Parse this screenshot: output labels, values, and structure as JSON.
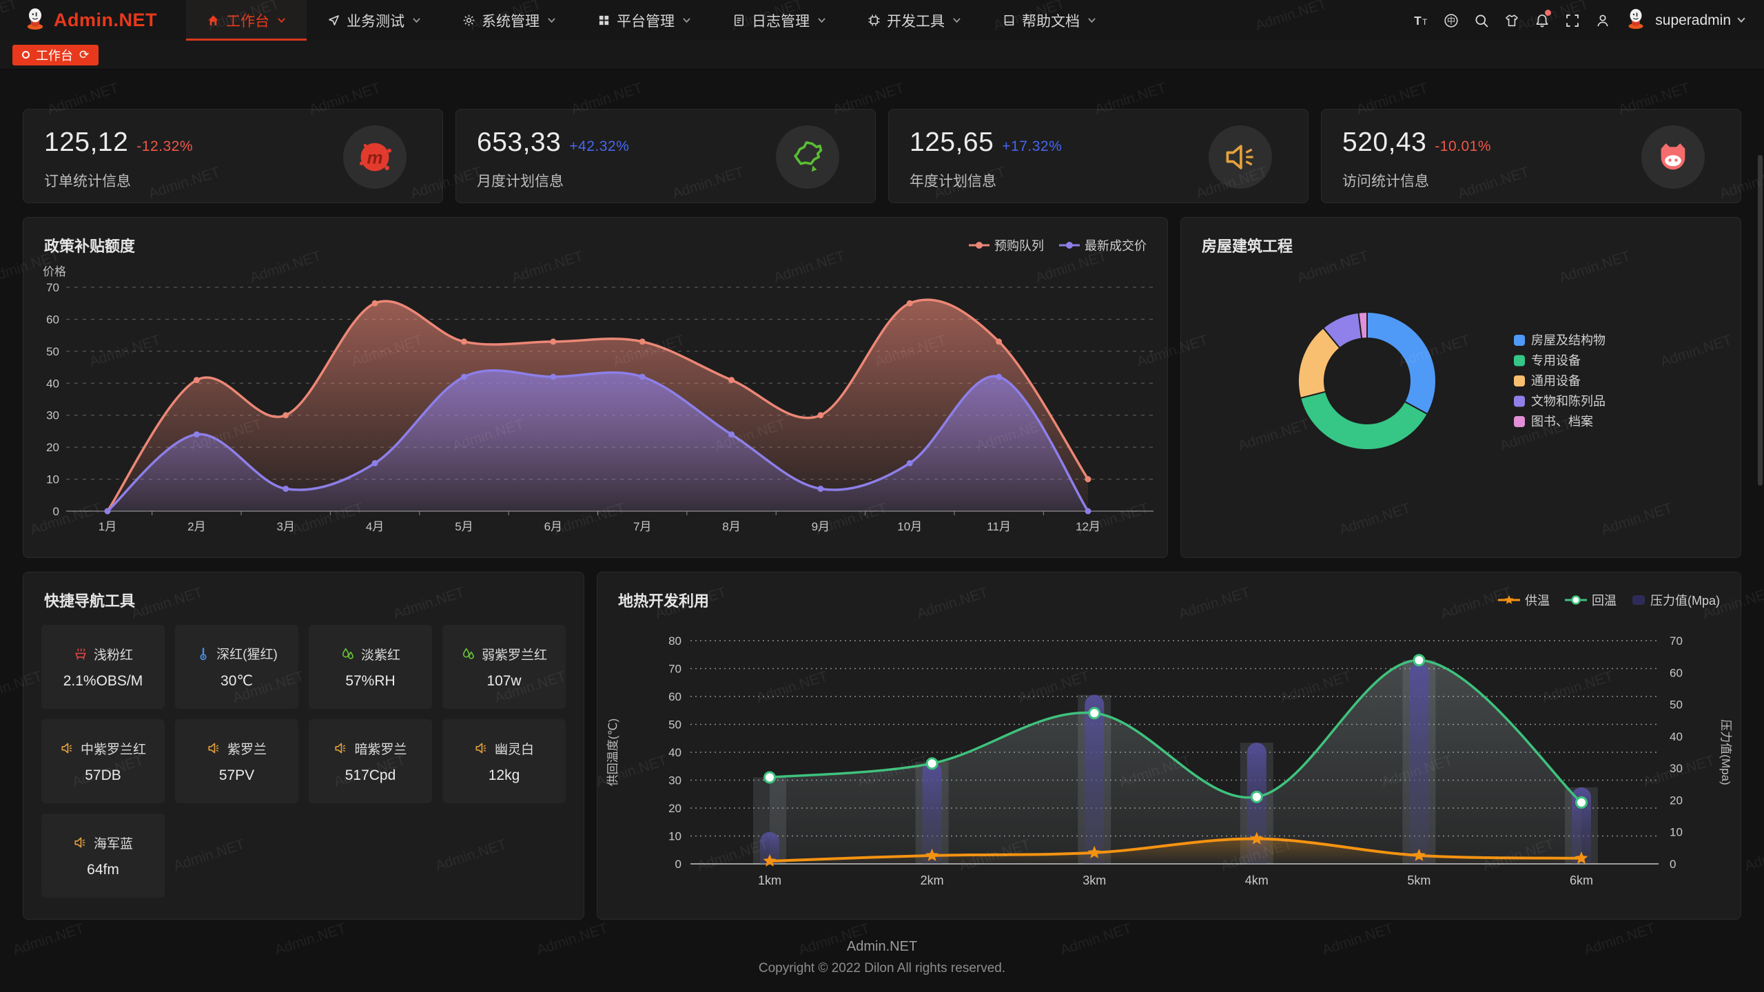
{
  "app": {
    "logo_text": "Admin.NET",
    "accent_color": "#e8391c"
  },
  "nav": {
    "items": [
      {
        "label": "工作台",
        "icon": "home-icon",
        "active": true
      },
      {
        "label": "业务测试",
        "icon": "navigation-icon",
        "active": false
      },
      {
        "label": "系统管理",
        "icon": "gear-icon",
        "active": false
      },
      {
        "label": "平台管理",
        "icon": "grid-icon",
        "active": false
      },
      {
        "label": "日志管理",
        "icon": "document-icon",
        "active": false
      },
      {
        "label": "开发工具",
        "icon": "chip-icon",
        "active": false
      },
      {
        "label": "帮助文档",
        "icon": "book-icon",
        "active": false
      }
    ]
  },
  "header_tools": [
    {
      "icon": "fontsize-icon",
      "badge": false
    },
    {
      "icon": "language-icon",
      "badge": false
    },
    {
      "icon": "search-icon",
      "badge": false
    },
    {
      "icon": "theme-icon",
      "badge": false
    },
    {
      "icon": "bell-icon",
      "badge": true
    },
    {
      "icon": "fullscreen-icon",
      "badge": false
    },
    {
      "icon": "user-icon",
      "badge": false
    }
  ],
  "user": {
    "name": "superadmin"
  },
  "tabs": [
    {
      "label": "工作台",
      "active": true
    }
  ],
  "stats": [
    {
      "value": "125,12",
      "delta": "-12.32%",
      "trend": "down",
      "label": "订单统计信息",
      "icon": "meetup-icon"
    },
    {
      "value": "653,33",
      "delta": "+42.32%",
      "trend": "up",
      "label": "月度计划信息",
      "icon": "china-map-icon"
    },
    {
      "value": "125,65",
      "delta": "+17.32%",
      "trend": "up",
      "label": "年度计划信息",
      "icon": "speaker-icon"
    },
    {
      "value": "520,43",
      "delta": "-10.01%",
      "trend": "down",
      "label": "访问统计信息",
      "icon": "cat-icon"
    }
  ],
  "status_colors": {
    "up": "#4766f0",
    "down": "#f25648"
  },
  "chart_data": [
    {
      "type": "line",
      "title": "政策补贴额度",
      "ylabel": "价格",
      "ylim": [
        0,
        70
      ],
      "ytick_step": 10,
      "grid": "dashed",
      "legend_position": "top-right",
      "categories": [
        "1月",
        "2月",
        "3月",
        "4月",
        "5月",
        "6月",
        "7月",
        "8月",
        "9月",
        "10月",
        "11月",
        "12月"
      ],
      "series": [
        {
          "name": "预购队列",
          "color": "#ec8776",
          "values": [
            0,
            41,
            30,
            65,
            53,
            53,
            53,
            41,
            30,
            65,
            53,
            10
          ]
        },
        {
          "name": "最新成交价",
          "color": "#8d7fe8",
          "values": [
            0,
            24,
            7,
            15,
            42,
            42,
            42,
            24,
            7,
            15,
            42,
            0
          ]
        }
      ]
    },
    {
      "type": "pie",
      "title": "房屋建筑工程",
      "legend_position": "right",
      "inner_radius_ratio": 0.62,
      "labels": [
        "房屋及结构物",
        "专用设备",
        "通用设备",
        "文物和陈列品",
        "图书、档案"
      ],
      "values": [
        33,
        38,
        18,
        9,
        2
      ],
      "colors": [
        "#4f9af7",
        "#36c686",
        "#f9bf70",
        "#9080e9",
        "#e18fd9"
      ]
    },
    {
      "type": "line-bar",
      "title": "地热开发利用",
      "categories": [
        "1km",
        "2km",
        "3km",
        "4km",
        "5km",
        "6km"
      ],
      "left_axis": {
        "name": "供回温度(℃)",
        "min": 0,
        "max": 80,
        "step": 10
      },
      "right_axis": {
        "name": "压力值(Mpa)",
        "min": 0,
        "max": 70,
        "step": 10
      },
      "legend_position": "top-right",
      "series": [
        {
          "name": "供温",
          "type": "line",
          "marker": "star",
          "axis": "left",
          "color": "#f59311",
          "values": [
            1,
            3,
            4,
            9,
            3,
            2
          ]
        },
        {
          "name": "回温",
          "type": "line",
          "marker": "circle",
          "axis": "left",
          "color": "#3fc27e",
          "values": [
            31,
            36,
            54,
            24,
            73,
            22
          ]
        },
        {
          "name": "压力值(Mpa)",
          "type": "bar",
          "axis": "right",
          "color": "#45407d",
          "values": [
            10,
            32,
            53,
            38,
            63,
            24
          ]
        }
      ]
    }
  ],
  "tools": {
    "title": "快捷导航工具",
    "items": [
      {
        "icon": "brazier-icon",
        "name": "浅粉红",
        "value": "2.1%OBS/M"
      },
      {
        "icon": "thermometer-icon",
        "name": "深红(猩红)",
        "value": "30℃"
      },
      {
        "icon": "drops-icon",
        "name": "淡紫红",
        "value": "57%RH"
      },
      {
        "icon": "drops-icon",
        "name": "弱紫罗兰红",
        "value": "107w"
      },
      {
        "icon": "speaker-small-icon",
        "name": "中紫罗兰红",
        "value": "57DB"
      },
      {
        "icon": "speaker-small-icon",
        "name": "紫罗兰",
        "value": "57PV"
      },
      {
        "icon": "speaker-small-icon",
        "name": "暗紫罗兰",
        "value": "517Cpd"
      },
      {
        "icon": "speaker-small-icon",
        "name": "幽灵白",
        "value": "12kg"
      },
      {
        "icon": "speaker-small-icon",
        "name": "海军蓝",
        "value": "64fm"
      }
    ]
  },
  "footer": {
    "line1": "Admin.NET",
    "line2": "Copyright © 2022 Dilon All rights reserved."
  },
  "watermark": {
    "text": "Admin.NET"
  }
}
